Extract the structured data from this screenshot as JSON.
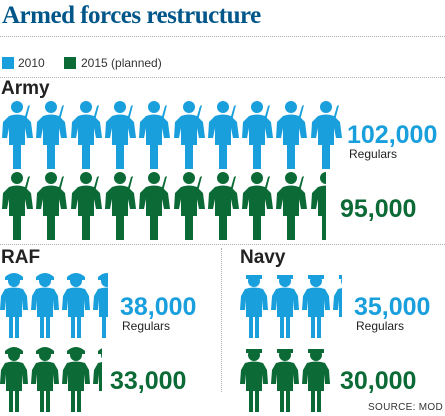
{
  "chart_data": {
    "type": "pictogram",
    "title": "Armed forces restructure",
    "legend": [
      {
        "label": "2010",
        "color": "#199fdc"
      },
      {
        "label": "2015 (planned)",
        "color": "#0b6a35"
      }
    ],
    "groups": [
      {
        "name": "Army",
        "figure": "soldier-icon",
        "values": [
          {
            "series": "2010",
            "value_label": "102,000",
            "sub_label": "Regulars",
            "value": 102000,
            "color": "#199fdc"
          },
          {
            "series": "2015 (planned)",
            "value_label": "95,000",
            "sub_label": "",
            "value": 95000,
            "color": "#0b6a35"
          }
        ]
      },
      {
        "name": "RAF",
        "figure": "airman-icon",
        "values": [
          {
            "series": "2010",
            "value_label": "38,000",
            "sub_label": "Regulars",
            "value": 38000,
            "color": "#199fdc"
          },
          {
            "series": "2015 (planned)",
            "value_label": "33,000",
            "sub_label": "",
            "value": 33000,
            "color": "#0b6a35"
          }
        ]
      },
      {
        "name": "Navy",
        "figure": "sailor-icon",
        "values": [
          {
            "series": "2010",
            "value_label": "35,000",
            "sub_label": "Regulars",
            "value": 35000,
            "color": "#199fdc"
          },
          {
            "series": "2015 (planned)",
            "value_label": "30,000",
            "sub_label": "",
            "value": 30000,
            "color": "#0b6a35"
          }
        ]
      }
    ],
    "source": "SOURCE: MOD"
  }
}
